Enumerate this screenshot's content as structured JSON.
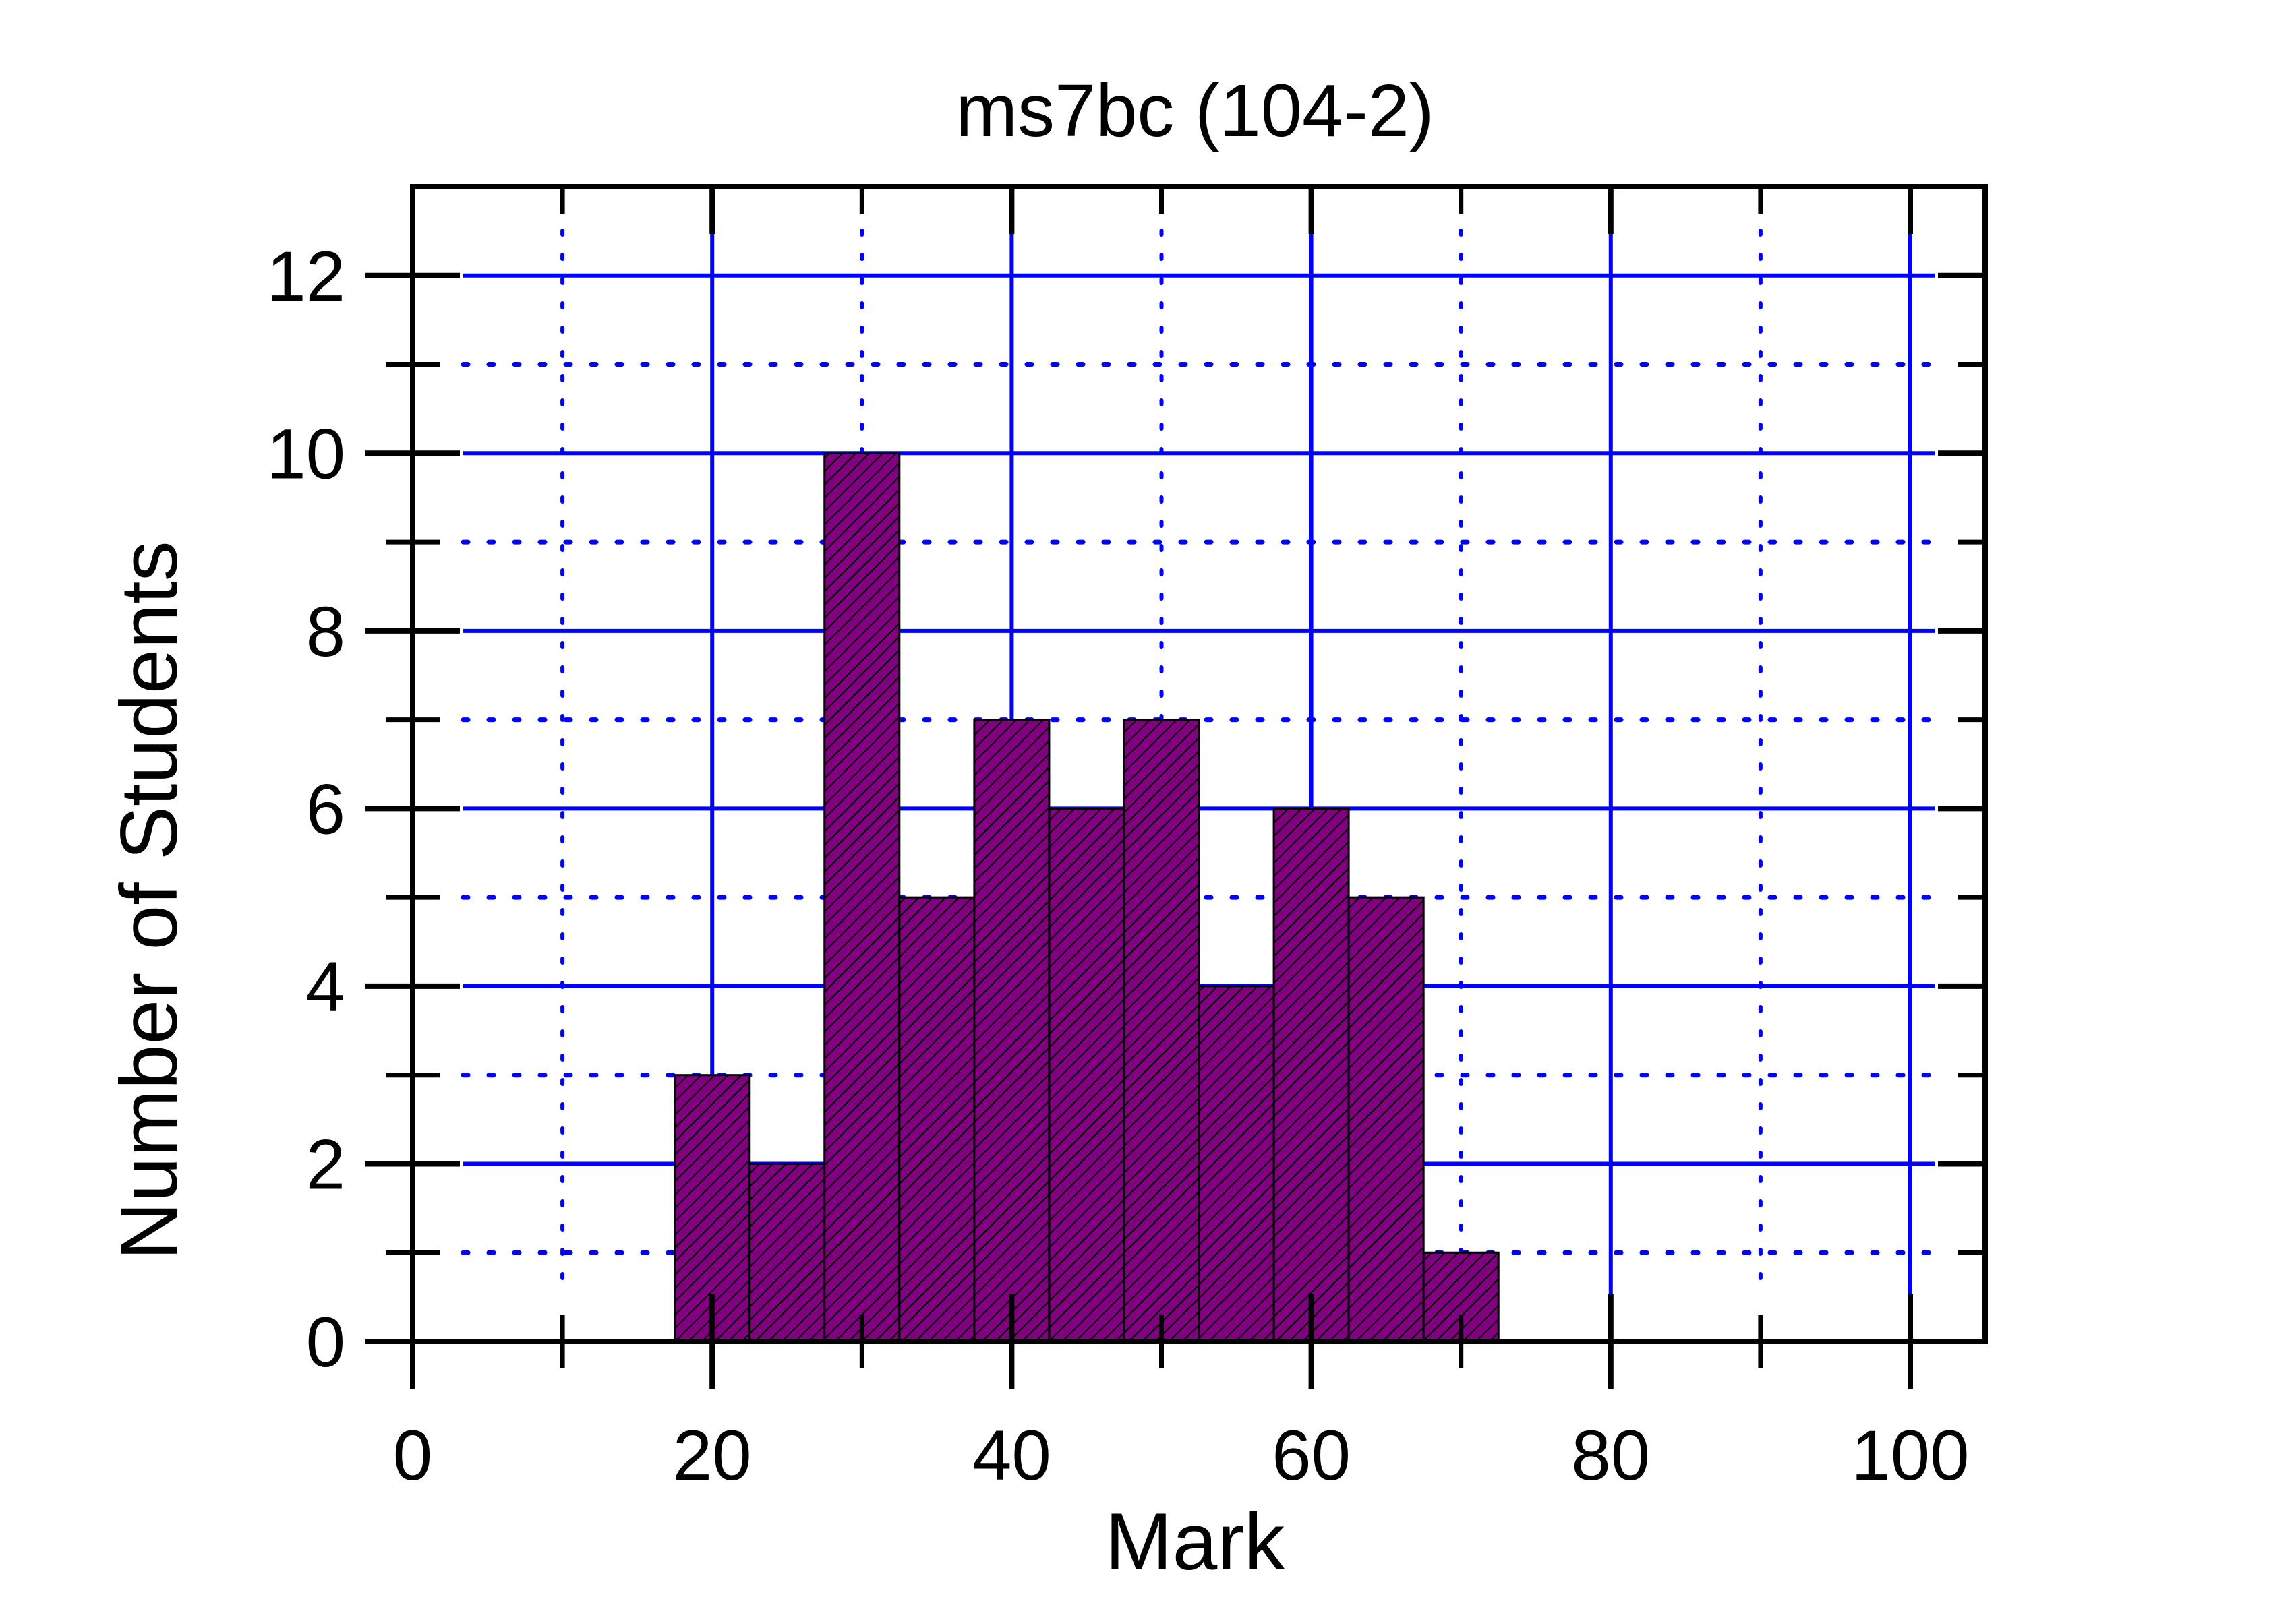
{
  "chart_data": {
    "type": "bar",
    "title": "ms7bc (104-2)",
    "xlabel": "Mark",
    "ylabel": "Number of Students",
    "xlim": [
      0,
      105
    ],
    "ylim": [
      0,
      13
    ],
    "bin_width": 5,
    "bins": [
      {
        "start": 17.5,
        "end": 22.5,
        "value": 3
      },
      {
        "start": 22.5,
        "end": 27.5,
        "value": 2
      },
      {
        "start": 27.5,
        "end": 32.5,
        "value": 10
      },
      {
        "start": 32.5,
        "end": 37.5,
        "value": 5
      },
      {
        "start": 37.5,
        "end": 42.5,
        "value": 7
      },
      {
        "start": 42.5,
        "end": 47.5,
        "value": 6
      },
      {
        "start": 47.5,
        "end": 52.5,
        "value": 7
      },
      {
        "start": 52.5,
        "end": 57.5,
        "value": 4
      },
      {
        "start": 57.5,
        "end": 62.5,
        "value": 6
      },
      {
        "start": 62.5,
        "end": 67.5,
        "value": 5
      },
      {
        "start": 67.5,
        "end": 72.5,
        "value": 1
      }
    ],
    "x_ticks": [
      0,
      20,
      40,
      60,
      80,
      100
    ],
    "x_minor_ticks": [
      10,
      30,
      50,
      70,
      90
    ],
    "y_ticks": [
      0,
      2,
      4,
      6,
      8,
      10,
      12
    ],
    "y_minor_ticks": [
      1,
      3,
      5,
      7,
      9,
      11
    ],
    "grid": true,
    "colors": {
      "bar_fill": "#800080",
      "bar_hatch": "#000000",
      "grid": "#0000ff",
      "axis": "#000000"
    }
  }
}
